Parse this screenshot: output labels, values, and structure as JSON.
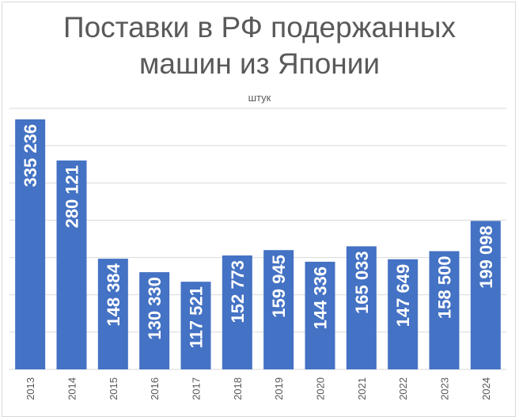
{
  "chart_data": {
    "type": "bar",
    "title_lines": [
      "Поставки в РФ подержанных",
      "машин из Японии"
    ],
    "subtitle": "штук",
    "categories": [
      "2013",
      "2014",
      "2015",
      "2016",
      "2017",
      "2018",
      "2019",
      "2020",
      "2021",
      "2022",
      "2023",
      "2024"
    ],
    "values": [
      335236,
      280121,
      148384,
      130330,
      117521,
      152773,
      159945,
      144336,
      165033,
      147649,
      158500,
      199098
    ],
    "labels": [
      "335 236",
      "280 121",
      "148 384",
      "130 330",
      "117 521",
      "152 773",
      "159 945",
      "144 336",
      "165 033",
      "147 649",
      "158 500",
      "199 098"
    ],
    "ylim": [
      0,
      350000
    ],
    "grid": true,
    "bar_color": "#4472c4",
    "grid_color": "#d9d9d9"
  }
}
